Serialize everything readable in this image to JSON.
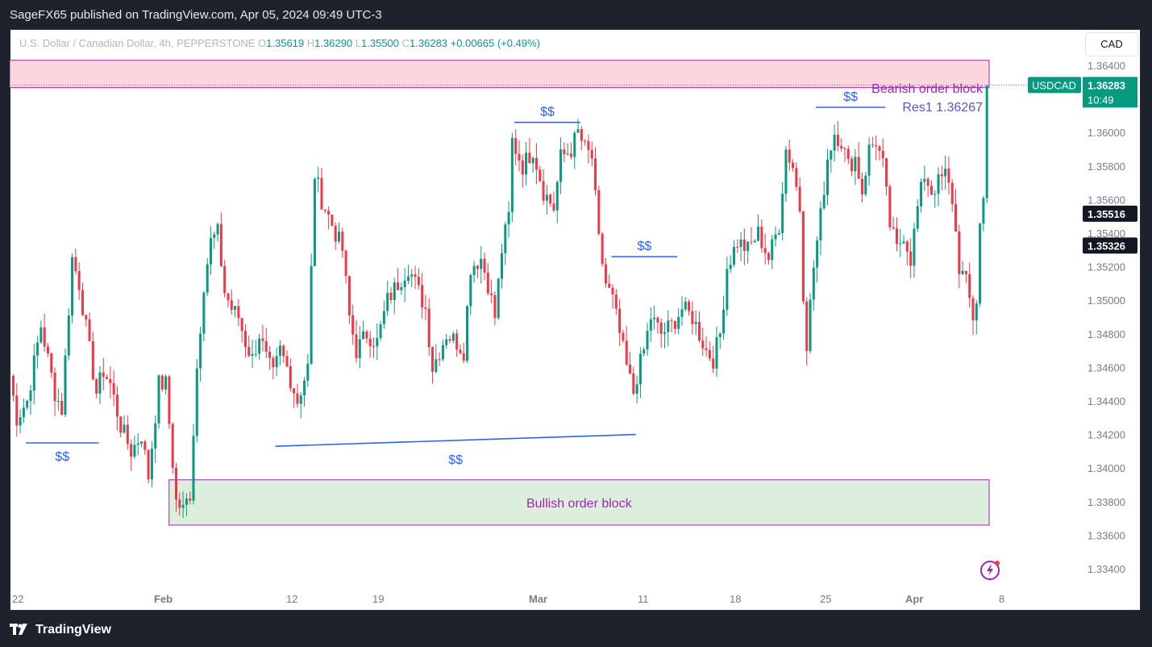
{
  "header": {
    "published": "SageFX65 published on TradingView.com, Apr 05, 2024 09:49 UTC-3"
  },
  "legend": {
    "symbol_text": "U.S. Dollar / Canadian Dollar, 4h, PEPPERSTONE",
    "o_label": "O",
    "o_value": "1.35619",
    "h_label": "H",
    "h_value": "1.36290",
    "l_label": "L",
    "l_value": "1.35500",
    "c_label": "C",
    "c_value": "1.36283",
    "change": "+0.00665 (+0.49%)"
  },
  "currency_button": "CAD",
  "footer": {
    "brand": "TradingView"
  },
  "colors": {
    "up": "#089981",
    "down": "#f23645",
    "swing_line": "#2962ff",
    "annotation_text": "#9c27b0",
    "price_tag_bg": "#089981",
    "bearish_block": "#fbd6dc",
    "bullish_block": "#dcefdc"
  },
  "chart_data": {
    "type": "candlestick",
    "symbol": "USDCAD",
    "timeframe": "4h",
    "ylim": [
      1.3325,
      1.365
    ],
    "y_ticks": [
      "1.36400",
      "1.36000",
      "1.35800",
      "1.35600",
      "1.35400",
      "1.35200",
      "1.35000",
      "1.34800",
      "1.34600",
      "1.34400",
      "1.34200",
      "1.34000",
      "1.33800",
      "1.33600",
      "1.33400"
    ],
    "x_ticks": [
      "22",
      "Feb",
      "12",
      "19",
      "Mar",
      "11",
      "18",
      "25",
      "Apr",
      "8"
    ],
    "x_tick_bold": [
      "Feb",
      "Mar",
      "Apr"
    ],
    "last_price": {
      "label": "USDCAD",
      "value": "1.36283",
      "countdown": "10:49",
      "price": 1.36283
    },
    "price_tags": [
      {
        "value": "1.35516",
        "price": 1.35516
      },
      {
        "value": "1.35326",
        "price": 1.35326
      }
    ],
    "zones": [
      {
        "name": "Bearish order block",
        "label": "Bearish order block",
        "sublabel": "Res1 1.36267",
        "low": 1.36267,
        "high": 1.3643,
        "start_index": 0,
        "end_index": 282
      },
      {
        "name": "Bullish order block",
        "label": "Bullish order block",
        "low": 1.3366,
        "high": 1.3393,
        "start_index": 46,
        "end_index": 282
      }
    ],
    "liquidity_lines": [
      {
        "label": "$$",
        "start_index": 4,
        "end_index": 25,
        "price_start": 1.3415,
        "price_end": 1.3415,
        "label_side": "below"
      },
      {
        "label": "$$",
        "start_index": 76,
        "end_index": 180,
        "price_start": 1.3413,
        "price_end": 1.342,
        "label_side": "below"
      },
      {
        "label": "$$",
        "start_index": 145,
        "end_index": 164,
        "price_start": 1.3606,
        "price_end": 1.3606,
        "label_side": "above"
      },
      {
        "label": "$$",
        "start_index": 173,
        "end_index": 192,
        "price_start": 1.3526,
        "price_end": 1.3526,
        "label_side": "above"
      },
      {
        "label": "$$",
        "start_index": 232,
        "end_index": 252,
        "price_start": 1.3615,
        "price_end": 1.3615,
        "label_side": "above"
      }
    ],
    "n_candles": 282,
    "anchors": [
      [
        0,
        1.3455
      ],
      [
        2,
        1.343
      ],
      [
        5,
        1.344
      ],
      [
        9,
        1.3485
      ],
      [
        13,
        1.3445
      ],
      [
        15,
        1.3435
      ],
      [
        18,
        1.3525
      ],
      [
        20,
        1.351
      ],
      [
        23,
        1.347
      ],
      [
        25,
        1.3445
      ],
      [
        27,
        1.3458
      ],
      [
        29,
        1.345
      ],
      [
        32,
        1.3425
      ],
      [
        35,
        1.341
      ],
      [
        38,
        1.342
      ],
      [
        40,
        1.3395
      ],
      [
        43,
        1.345
      ],
      [
        45,
        1.345
      ],
      [
        48,
        1.338
      ],
      [
        50,
        1.3375
      ],
      [
        52,
        1.3385
      ],
      [
        54,
        1.346
      ],
      [
        56,
        1.351
      ],
      [
        58,
        1.3535
      ],
      [
        60,
        1.354
      ],
      [
        62,
        1.3505
      ],
      [
        64,
        1.3495
      ],
      [
        66,
        1.349
      ],
      [
        68,
        1.3475
      ],
      [
        70,
        1.3465
      ],
      [
        72,
        1.348
      ],
      [
        74,
        1.3465
      ],
      [
        76,
        1.3455
      ],
      [
        78,
        1.347
      ],
      [
        80,
        1.346
      ],
      [
        83,
        1.344
      ],
      [
        86,
        1.346
      ],
      [
        88,
        1.3575
      ],
      [
        90,
        1.356
      ],
      [
        93,
        1.3545
      ],
      [
        96,
        1.353
      ],
      [
        98,
        1.349
      ],
      [
        100,
        1.347
      ],
      [
        103,
        1.348
      ],
      [
        106,
        1.3475
      ],
      [
        109,
        1.35
      ],
      [
        112,
        1.351
      ],
      [
        115,
        1.352
      ],
      [
        117,
        1.351
      ],
      [
        120,
        1.3495
      ],
      [
        122,
        1.346
      ],
      [
        124,
        1.347
      ],
      [
        126,
        1.348
      ],
      [
        129,
        1.3475
      ],
      [
        131,
        1.347
      ],
      [
        133,
        1.352
      ],
      [
        136,
        1.3525
      ],
      [
        138,
        1.351
      ],
      [
        140,
        1.349
      ],
      [
        142,
        1.353
      ],
      [
        144,
        1.355
      ],
      [
        145,
        1.3595
      ],
      [
        148,
        1.358
      ],
      [
        151,
        1.359
      ],
      [
        154,
        1.3565
      ],
      [
        157,
        1.3555
      ],
      [
        159,
        1.3585
      ],
      [
        162,
        1.359
      ],
      [
        164,
        1.36
      ],
      [
        166,
        1.359
      ],
      [
        168,
        1.3585
      ],
      [
        170,
        1.3535
      ],
      [
        172,
        1.351
      ],
      [
        174,
        1.35
      ],
      [
        176,
        1.348
      ],
      [
        178,
        1.346
      ],
      [
        180,
        1.3445
      ],
      [
        181,
        1.3455
      ],
      [
        183,
        1.347
      ],
      [
        185,
        1.349
      ],
      [
        188,
        1.348
      ],
      [
        191,
        1.3485
      ],
      [
        194,
        1.3495
      ],
      [
        197,
        1.349
      ],
      [
        199,
        1.348
      ],
      [
        201,
        1.347
      ],
      [
        203,
        1.3465
      ],
      [
        205,
        1.348
      ],
      [
        207,
        1.352
      ],
      [
        210,
        1.3535
      ],
      [
        213,
        1.353
      ],
      [
        216,
        1.354
      ],
      [
        219,
        1.3525
      ],
      [
        222,
        1.3545
      ],
      [
        224,
        1.359
      ],
      [
        226,
        1.358
      ],
      [
        228,
        1.3555
      ],
      [
        229,
        1.3505
      ],
      [
        230,
        1.3475
      ],
      [
        232,
        1.352
      ],
      [
        234,
        1.355
      ],
      [
        236,
        1.3585
      ],
      [
        238,
        1.36
      ],
      [
        240,
        1.3595
      ],
      [
        242,
        1.358
      ],
      [
        244,
        1.3585
      ],
      [
        246,
        1.3565
      ],
      [
        248,
        1.359
      ],
      [
        250,
        1.3595
      ],
      [
        252,
        1.358
      ],
      [
        254,
        1.3545
      ],
      [
        256,
        1.353
      ],
      [
        258,
        1.354
      ],
      [
        260,
        1.3525
      ],
      [
        262,
        1.3555
      ],
      [
        264,
        1.3575
      ],
      [
        266,
        1.3565
      ],
      [
        268,
        1.357
      ],
      [
        270,
        1.3575
      ],
      [
        272,
        1.356
      ],
      [
        274,
        1.352
      ],
      [
        276,
        1.351
      ],
      [
        278,
        1.349
      ],
      [
        279,
        1.35
      ],
      [
        280,
        1.3545
      ],
      [
        281,
        1.356
      ],
      [
        282,
        1.3628
      ]
    ]
  }
}
